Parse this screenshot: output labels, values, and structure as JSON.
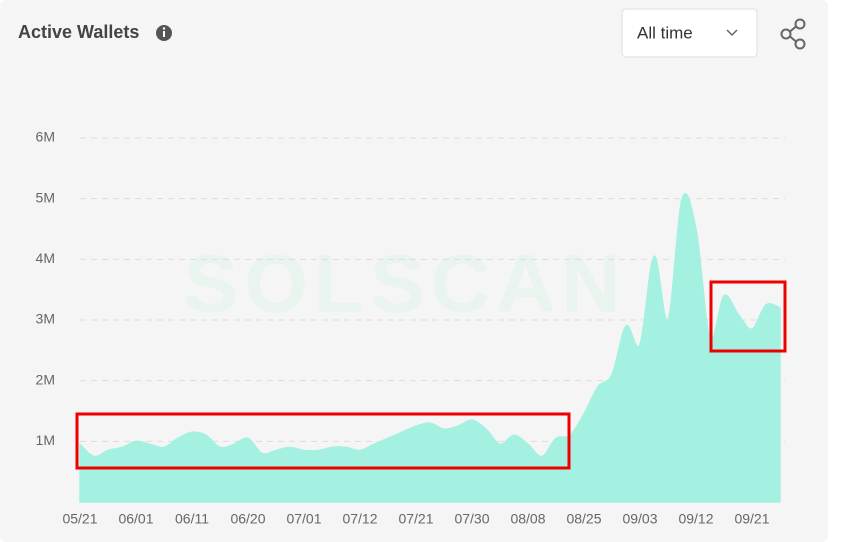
{
  "chart_data": {
    "type": "area",
    "title": "Active Wallets",
    "control": "All time",
    "watermark": "SOLSCAN",
    "categories": [
      "05/21",
      null,
      null,
      null,
      "06/01",
      null,
      null,
      null,
      "06/11",
      null,
      null,
      null,
      "06/20",
      null,
      null,
      null,
      "07/01",
      null,
      null,
      null,
      "07/12",
      null,
      null,
      null,
      "07/21",
      null,
      null,
      null,
      "07/30",
      null,
      null,
      null,
      "08/08",
      null,
      null,
      null,
      "08/25",
      null,
      null,
      null,
      "09/03",
      null,
      null,
      null,
      "09/12",
      null,
      null,
      null,
      "09/21",
      null,
      null
    ],
    "values": [
      950000,
      750000,
      850000,
      900000,
      1000000,
      950000,
      900000,
      1050000,
      1150000,
      1100000,
      900000,
      950000,
      1050000,
      800000,
      850000,
      900000,
      850000,
      850000,
      900000,
      900000,
      850000,
      950000,
      1050000,
      1150000,
      1250000,
      1300000,
      1200000,
      1250000,
      1350000,
      1200000,
      950000,
      1100000,
      950000,
      750000,
      1050000,
      1100000,
      1450000,
      1900000,
      2100000,
      2900000,
      2600000,
      4050000,
      3000000,
      5000000,
      4500000,
      2700000,
      3400000,
      3100000,
      2850000,
      3250000,
      3200000
    ],
    "color": "#a5f1e1",
    "ylim": [
      0,
      6000000
    ],
    "yticks": [
      {
        "value": 1000000,
        "label": "1M"
      },
      {
        "value": 2000000,
        "label": "2M"
      },
      {
        "value": 3000000,
        "label": "3M"
      },
      {
        "value": 4000000,
        "label": "4M"
      },
      {
        "value": 5000000,
        "label": "5M"
      },
      {
        "value": 6000000,
        "label": "6M"
      }
    ],
    "grid": true
  }
}
